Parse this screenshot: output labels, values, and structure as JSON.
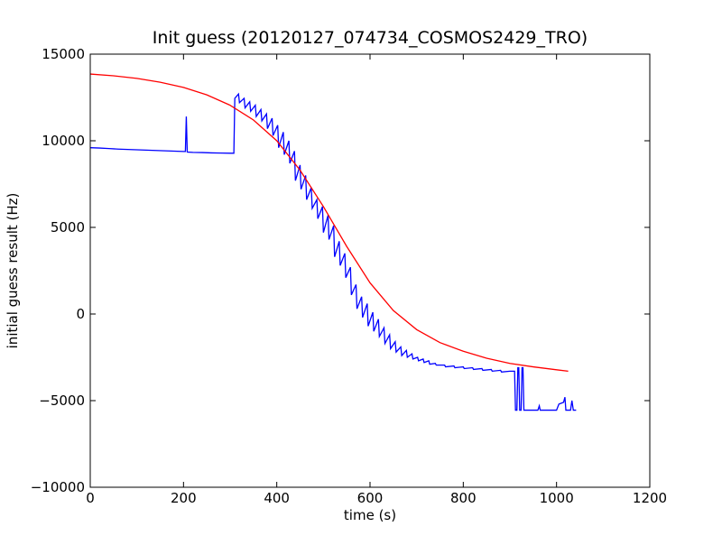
{
  "chart_data": {
    "type": "line",
    "title": "Init guess (20120127_074734_COSMOS2429_TRO)",
    "xlabel": "time (s)",
    "ylabel": "initial guess result (Hz)",
    "xlim": [
      0,
      1200
    ],
    "ylim": [
      -10000,
      15000
    ],
    "xticks": [
      0,
      200,
      400,
      600,
      800,
      1000,
      1200
    ],
    "yticks": [
      -10000,
      -5000,
      0,
      5000,
      10000,
      15000
    ],
    "grid": false,
    "colors": {
      "measured": "#0000ff",
      "fit": "#ff0000"
    },
    "series": [
      {
        "key": "measured",
        "color": "#0000ff",
        "points": [
          [
            0,
            9600
          ],
          [
            20,
            9580
          ],
          [
            40,
            9550
          ],
          [
            60,
            9520
          ],
          [
            80,
            9500
          ],
          [
            100,
            9480
          ],
          [
            120,
            9460
          ],
          [
            140,
            9440
          ],
          [
            160,
            9420
          ],
          [
            180,
            9400
          ],
          [
            200,
            9380
          ],
          [
            204,
            9380
          ],
          [
            206,
            11400
          ],
          [
            208,
            9350
          ],
          [
            220,
            9330
          ],
          [
            240,
            9320
          ],
          [
            260,
            9300
          ],
          [
            280,
            9290
          ],
          [
            300,
            9280
          ],
          [
            308,
            9280
          ],
          [
            310,
            12450
          ],
          [
            318,
            12700
          ],
          [
            320,
            12200
          ],
          [
            330,
            12450
          ],
          [
            332,
            11900
          ],
          [
            342,
            12250
          ],
          [
            344,
            11700
          ],
          [
            354,
            12050
          ],
          [
            356,
            11400
          ],
          [
            366,
            11800
          ],
          [
            368,
            11150
          ],
          [
            378,
            11550
          ],
          [
            380,
            10700
          ],
          [
            390,
            11300
          ],
          [
            392,
            10300
          ],
          [
            402,
            10900
          ],
          [
            404,
            9600
          ],
          [
            414,
            10500
          ],
          [
            416,
            9200
          ],
          [
            426,
            10000
          ],
          [
            428,
            8700
          ],
          [
            438,
            9400
          ],
          [
            440,
            7700
          ],
          [
            450,
            8600
          ],
          [
            452,
            7200
          ],
          [
            462,
            8000
          ],
          [
            464,
            6600
          ],
          [
            474,
            7300
          ],
          [
            476,
            6100
          ],
          [
            486,
            6600
          ],
          [
            488,
            5500
          ],
          [
            498,
            6200
          ],
          [
            500,
            4700
          ],
          [
            510,
            5700
          ],
          [
            512,
            4300
          ],
          [
            522,
            5100
          ],
          [
            524,
            3300
          ],
          [
            534,
            4200
          ],
          [
            536,
            2800
          ],
          [
            546,
            3500
          ],
          [
            548,
            2100
          ],
          [
            558,
            2700
          ],
          [
            560,
            1100
          ],
          [
            570,
            1700
          ],
          [
            572,
            300
          ],
          [
            582,
            1000
          ],
          [
            584,
            -200
          ],
          [
            594,
            600
          ],
          [
            596,
            -700
          ],
          [
            606,
            100
          ],
          [
            608,
            -1000
          ],
          [
            618,
            -300
          ],
          [
            620,
            -1300
          ],
          [
            630,
            -800
          ],
          [
            632,
            -1700
          ],
          [
            642,
            -1200
          ],
          [
            644,
            -2000
          ],
          [
            654,
            -1600
          ],
          [
            656,
            -2200
          ],
          [
            666,
            -1900
          ],
          [
            668,
            -2400
          ],
          [
            678,
            -2100
          ],
          [
            680,
            -2500
          ],
          [
            690,
            -2300
          ],
          [
            692,
            -2600
          ],
          [
            702,
            -2500
          ],
          [
            704,
            -2700
          ],
          [
            714,
            -2600
          ],
          [
            716,
            -2800
          ],
          [
            726,
            -2700
          ],
          [
            728,
            -2900
          ],
          [
            740,
            -2850
          ],
          [
            742,
            -2950
          ],
          [
            760,
            -2950
          ],
          [
            762,
            -3050
          ],
          [
            780,
            -3000
          ],
          [
            782,
            -3100
          ],
          [
            800,
            -3050
          ],
          [
            802,
            -3150
          ],
          [
            820,
            -3100
          ],
          [
            822,
            -3200
          ],
          [
            840,
            -3150
          ],
          [
            842,
            -3250
          ],
          [
            860,
            -3200
          ],
          [
            862,
            -3300
          ],
          [
            880,
            -3250
          ],
          [
            882,
            -3350
          ],
          [
            900,
            -3300
          ],
          [
            910,
            -3300
          ],
          [
            912,
            -5550
          ],
          [
            915,
            -5550
          ],
          [
            917,
            -3100
          ],
          [
            919,
            -3100
          ],
          [
            921,
            -5550
          ],
          [
            924,
            -5550
          ],
          [
            926,
            -3100
          ],
          [
            928,
            -3100
          ],
          [
            930,
            -5550
          ],
          [
            950,
            -5550
          ],
          [
            960,
            -5550
          ],
          [
            963,
            -5300
          ],
          [
            965,
            -5550
          ],
          [
            990,
            -5550
          ],
          [
            1000,
            -5550
          ],
          [
            1005,
            -5200
          ],
          [
            1010,
            -5150
          ],
          [
            1015,
            -5100
          ],
          [
            1018,
            -4800
          ],
          [
            1020,
            -5550
          ],
          [
            1030,
            -5550
          ],
          [
            1033,
            -5000
          ],
          [
            1036,
            -5550
          ],
          [
            1042,
            -5550
          ]
        ]
      },
      {
        "key": "fit",
        "color": "#ff0000",
        "points": [
          [
            0,
            13850
          ],
          [
            50,
            13750
          ],
          [
            100,
            13600
          ],
          [
            150,
            13380
          ],
          [
            200,
            13080
          ],
          [
            250,
            12650
          ],
          [
            300,
            12050
          ],
          [
            350,
            11200
          ],
          [
            400,
            10000
          ],
          [
            450,
            8300
          ],
          [
            500,
            6200
          ],
          [
            550,
            3900
          ],
          [
            600,
            1800
          ],
          [
            650,
            200
          ],
          [
            700,
            -900
          ],
          [
            750,
            -1650
          ],
          [
            800,
            -2150
          ],
          [
            850,
            -2550
          ],
          [
            900,
            -2850
          ],
          [
            950,
            -3050
          ],
          [
            1000,
            -3220
          ],
          [
            1025,
            -3300
          ]
        ]
      }
    ]
  }
}
